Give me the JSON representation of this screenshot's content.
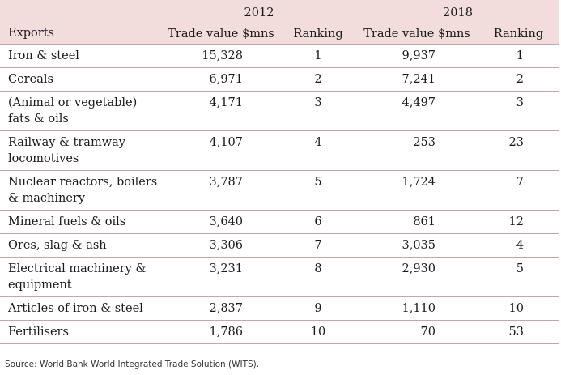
{
  "header": {
    "year_2012": "2012",
    "year_2018": "2018",
    "col_exports": "Exports",
    "col_trade_2012": "Trade value $mns",
    "col_rank_2012": "Ranking",
    "col_trade_2018": "Trade value $mns",
    "col_rank_2018": "Ranking"
  },
  "rows": [
    {
      "export": "Iron & steel",
      "trade_2012": "15,328",
      "rank_2012": "1",
      "trade_2018": "9,937",
      "rank_2018": "1"
    },
    {
      "export": "Cereals",
      "trade_2012": "6,971",
      "rank_2012": "2",
      "trade_2018": "7,241",
      "rank_2018": "2"
    },
    {
      "export": "(Animal or vegetable) fats & oils",
      "trade_2012": "4,171",
      "rank_2012": "3",
      "trade_2018": "4,497",
      "rank_2018": "3"
    },
    {
      "export": "Railway & tramway locomotives",
      "trade_2012": "4,107",
      "rank_2012": "4",
      "trade_2018": "253",
      "rank_2018": "23"
    },
    {
      "export": "Nuclear reactors, boilers & machinery",
      "trade_2012": "3,787",
      "rank_2012": "5",
      "trade_2018": "1,724",
      "rank_2018": "7"
    },
    {
      "export": "Mineral fuels & oils",
      "trade_2012": "3,640",
      "rank_2012": "6",
      "trade_2018": "861",
      "rank_2018": "12"
    },
    {
      "export": "Ores, slag & ash",
      "trade_2012": "3,306",
      "rank_2012": "7",
      "trade_2018": "3,035",
      "rank_2018": "4"
    },
    {
      "export": "Electrical machinery & equipment",
      "trade_2012": "3,231",
      "rank_2012": "8",
      "trade_2018": "2,930",
      "rank_2018": "5"
    },
    {
      "export": "Articles of iron & steel",
      "trade_2012": "2,837",
      "rank_2012": "9",
      "trade_2018": "1,110",
      "rank_2018": "10"
    },
    {
      "export": "Fertilisers",
      "trade_2012": "1,786",
      "rank_2012": "10",
      "trade_2018": "70",
      "rank_2018": "53"
    }
  ],
  "source": "Source: World Bank World Integrated Trade Solution (WITS)."
}
